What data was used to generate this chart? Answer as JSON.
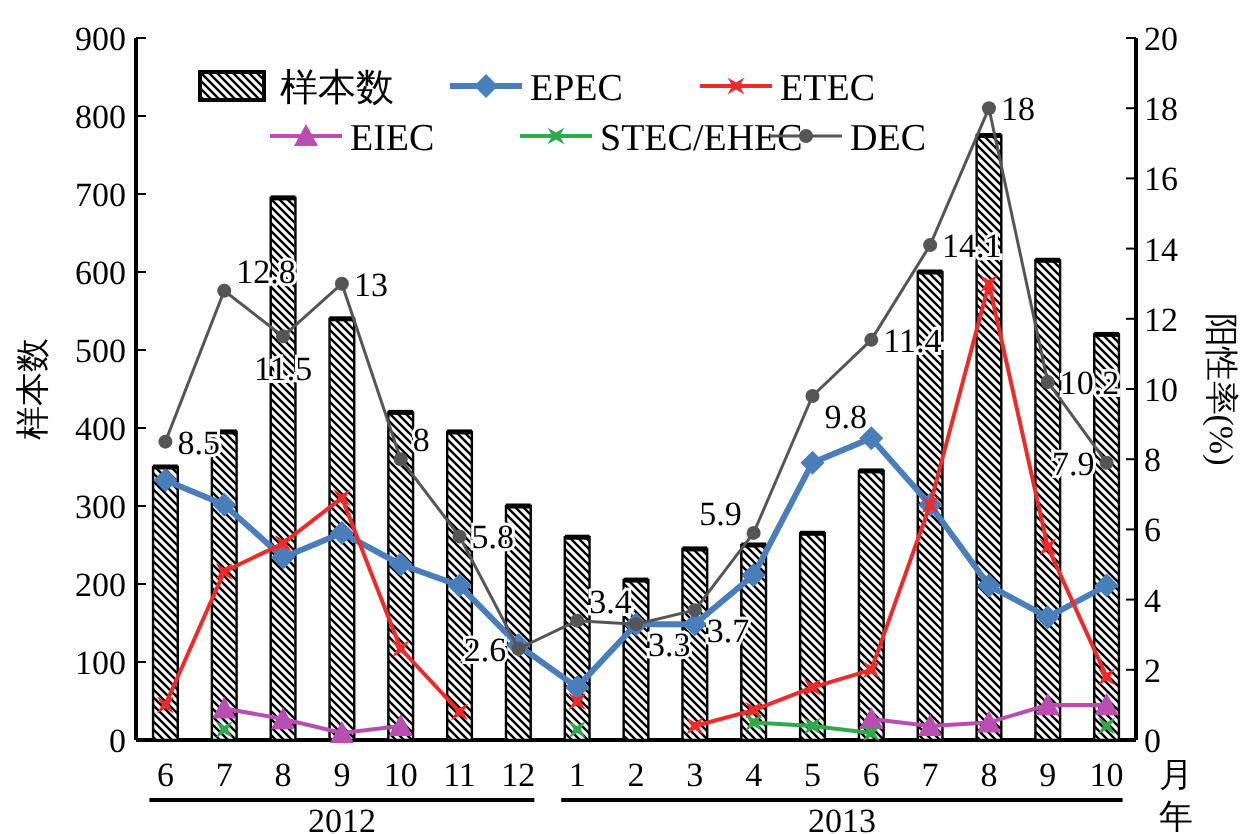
{
  "chart_data": {
    "type": "bar",
    "categories": [
      "6",
      "7",
      "8",
      "9",
      "10",
      "11",
      "12",
      "1",
      "2",
      "3",
      "4",
      "5",
      "6",
      "7",
      "8",
      "9",
      "10"
    ],
    "xlabel": "月",
    "ylabel": "样本数",
    "y2label": "阳性率(%)",
    "annotations": [
      "2012",
      "2013",
      "年"
    ],
    "ylim": [
      0,
      900
    ],
    "yticks": [
      0,
      100,
      200,
      300,
      400,
      500,
      600,
      700,
      800,
      900
    ],
    "y2lim": [
      0,
      20
    ],
    "y2ticks": [
      0,
      2,
      4,
      6,
      8,
      10,
      12,
      14,
      16,
      18,
      20
    ],
    "legend": "top left",
    "grid": false,
    "series": [
      {
        "name": "样本数",
        "color": "#000000",
        "values": [
          350,
          395,
          695,
          540,
          420,
          395,
          300,
          260,
          205,
          245,
          250,
          265,
          345,
          600,
          775,
          615,
          520
        ]
      },
      {
        "name": "EPEC",
        "type": "line",
        "axis": "y2",
        "marker": "diamond",
        "color": "#4a7ebb",
        "values": [
          7.4,
          6.7,
          5.2,
          5.9,
          5.0,
          4.4,
          2.7,
          1.5,
          3.3,
          3.3,
          4.7,
          7.9,
          8.6,
          6.7,
          4.4,
          3.5,
          4.4
        ]
      },
      {
        "name": "ETEC",
        "type": "line",
        "axis": "y2",
        "marker": "cross",
        "color": "#ee2a2a",
        "values": [
          1.0,
          4.8,
          5.6,
          6.9,
          2.6,
          0.8,
          null,
          1.1,
          null,
          0.4,
          0.85,
          1.5,
          2.0,
          6.7,
          13.0,
          5.5,
          1.8
        ]
      },
      {
        "name": "EIEC",
        "type": "line",
        "axis": "y2",
        "marker": "triangle",
        "color": "#b84fb0",
        "values": [
          null,
          0.9,
          0.6,
          0.2,
          0.4,
          null,
          null,
          null,
          null,
          null,
          null,
          null,
          0.6,
          0.4,
          0.5,
          1.0,
          1.0
        ]
      },
      {
        "name": "STEC/EHEC",
        "type": "line",
        "axis": "y2",
        "marker": "cross",
        "color": "#2eaa4a",
        "values": [
          null,
          0.3,
          null,
          null,
          null,
          null,
          null,
          0.3,
          null,
          null,
          0.5,
          0.4,
          0.2,
          null,
          null,
          null,
          0.4
        ]
      },
      {
        "name": "DEC",
        "type": "line",
        "axis": "y2",
        "marker": "circle",
        "color": "#555555",
        "values": [
          8.5,
          12.8,
          11.5,
          13,
          8,
          5.8,
          2.6,
          3.4,
          3.3,
          3.7,
          5.9,
          9.8,
          11.4,
          14.1,
          18,
          10.2,
          7.9
        ],
        "value_labels": [
          "8.5",
          "12.8",
          "11.5",
          "13",
          "8",
          "5.8",
          "2.6",
          "3.4",
          "3.3",
          "3.7",
          "5.9",
          "9.8",
          "11.4",
          "14.1",
          "18",
          "10.2",
          "7.9"
        ]
      }
    ]
  }
}
